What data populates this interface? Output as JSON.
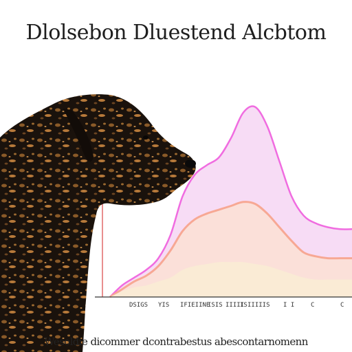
{
  "header": {
    "title": "Dlolsebon Dluestend Alcbtom"
  },
  "footer": {
    "caption": "Wesoldie dicommer dcontrabestus abescontarnomenn"
  },
  "illustration": {
    "subject": "dog-silhouette",
    "coat_colors": [
      "#1a120c",
      "#8a5a28",
      "#b87a3a"
    ]
  },
  "colors": {
    "axis": "#e06a6a",
    "outer_curve": "#f06ce0",
    "outer_fill": "#f6d6f3",
    "middle_curve": "#f7a894",
    "middle_fill": "#fbe0d6",
    "inner_fill": "#f9ecd4",
    "baseline": "#333333"
  },
  "chart_data": {
    "type": "area",
    "title": "Dlolsebon Dluestend Alcbtom",
    "xlabel": "",
    "ylabel": "",
    "x": [
      0,
      5,
      10,
      15,
      20,
      25,
      30,
      35,
      40,
      45,
      50,
      55,
      60,
      65,
      70,
      75,
      80,
      85,
      90,
      95,
      100
    ],
    "series": [
      {
        "values": [
          0,
          6,
          10,
          14,
          20,
          32,
          52,
          63,
          68,
          72,
          82,
          95,
          98,
          88,
          70,
          52,
          42,
          38,
          36,
          35,
          35
        ]
      },
      {
        "values": [
          0,
          4,
          8,
          11,
          16,
          24,
          34,
          40,
          43,
          45,
          47,
          49,
          48,
          43,
          36,
          29,
          23,
          21,
          20,
          20,
          20
        ]
      },
      {
        "values": [
          0,
          3,
          5,
          6,
          8,
          10,
          14,
          16,
          17,
          18,
          18,
          18,
          17,
          16,
          14,
          12,
          10,
          9,
          9,
          9,
          9
        ]
      }
    ],
    "xlim": [
      0,
      100
    ],
    "ylim": [
      0,
      100
    ],
    "tick_labels": [
      "DSIGS",
      "YIS",
      "IFIEIINE",
      "ISIS",
      "IIIII",
      "IS",
      "IIIIIS",
      "I I",
      "C",
      "C"
    ],
    "grid": false,
    "legend": "none"
  }
}
